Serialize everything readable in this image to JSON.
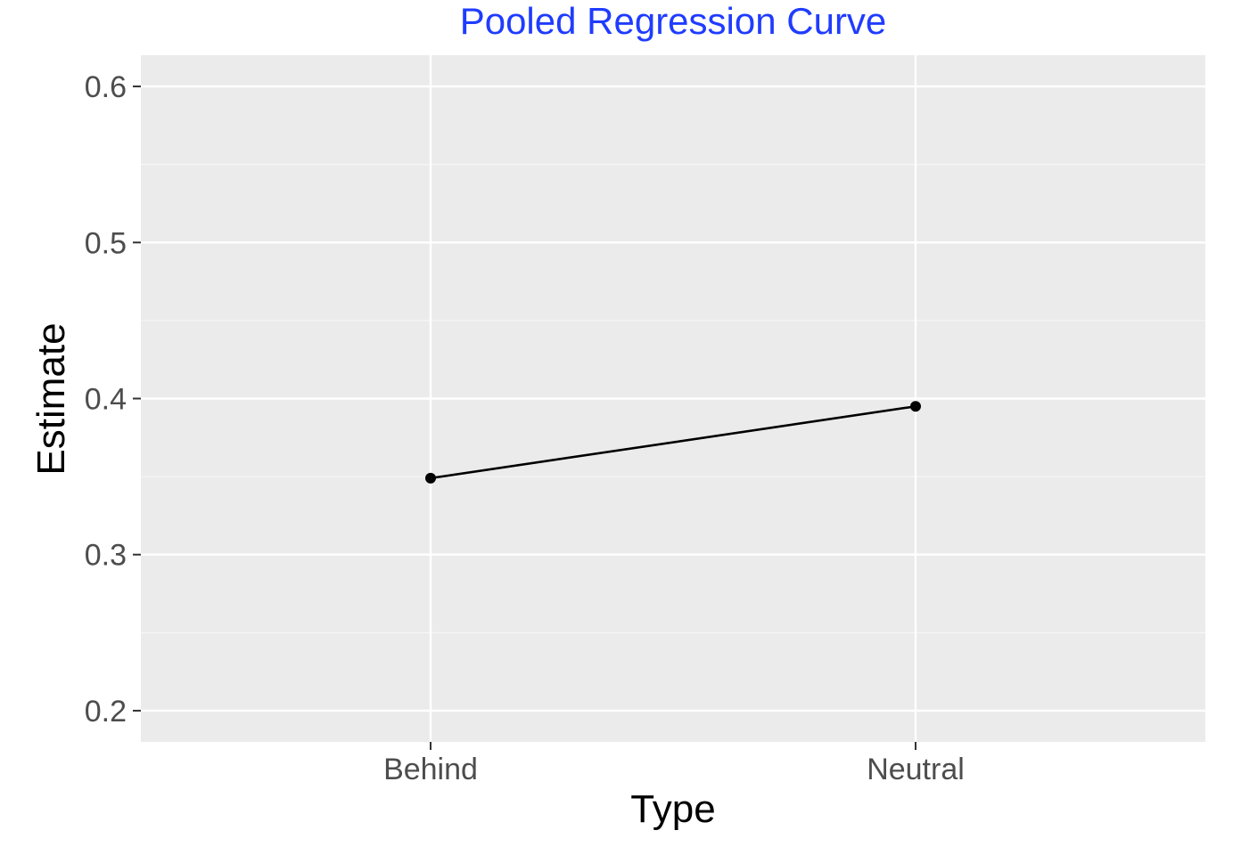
{
  "colors": {
    "title": "#1f3cff",
    "panel_background": "#ebebeb",
    "grid_major": "#ffffff",
    "grid_minor": "#f6f6f6",
    "tick_label": "#4d4d4d",
    "tick_mark": "#333333",
    "series": "#000000"
  },
  "chart_data": {
    "type": "line",
    "title": "Pooled Regression Curve",
    "xlabel": "Type",
    "ylabel": "Estimate",
    "categories": [
      "Behind",
      "Neutral"
    ],
    "series": [
      {
        "values": [
          0.349,
          0.395
        ],
        "markers": true
      }
    ],
    "ylim": [
      0.18,
      0.62
    ],
    "yticks": [
      0.2,
      0.3,
      0.4,
      0.5,
      0.6
    ],
    "ytick_labels": [
      "0.2",
      "0.3",
      "0.4",
      "0.5",
      "0.6"
    ],
    "y_minor_ticks": [
      0.25,
      0.35,
      0.45,
      0.55
    ],
    "grid": true,
    "legend": "none"
  }
}
